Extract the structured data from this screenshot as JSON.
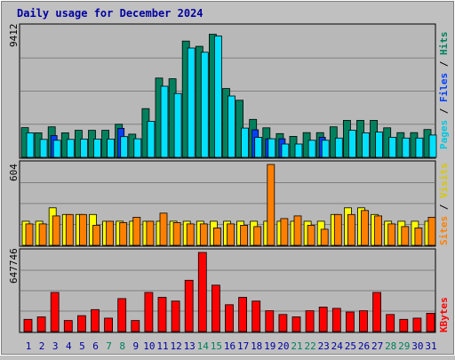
{
  "title": "Daily usage for December 2024",
  "colors": {
    "background": "#c0c0c0",
    "plot_bg": "#b8b8b8",
    "gridline": "#808080",
    "hits": "#00805c",
    "files": "#0040ff",
    "pages": "#00e0ff",
    "visits": "#ffff00",
    "sites": "#ff8000",
    "kbytes": "#ff0000",
    "title": "#0000a0",
    "weekend_label": "#00805c",
    "weekday_label": "#0000a0"
  },
  "chart_data": [
    {
      "type": "bar",
      "name": "hits-files-pages",
      "axis_label": "9412",
      "ymax": 9412,
      "categories": [
        "1",
        "2",
        "3",
        "4",
        "5",
        "6",
        "7",
        "8",
        "9",
        "10",
        "11",
        "12",
        "13",
        "14",
        "15",
        "16",
        "17",
        "18",
        "19",
        "20",
        "21",
        "22",
        "23",
        "24",
        "25",
        "26",
        "27",
        "28",
        "29",
        "30",
        "31"
      ],
      "side_label": {
        "pages": "Pages",
        "files": "Files",
        "hits": "Hits",
        "sep": " / "
      },
      "series": [
        {
          "name": "Hits",
          "values": [
            2150,
            1780,
            2210,
            1780,
            1960,
            1960,
            1960,
            2400,
            1680,
            3530,
            5750,
            5700,
            8430,
            8050,
            8930,
            4990,
            4140,
            2750,
            2140,
            1720,
            1520,
            1790,
            1790,
            2210,
            2680,
            2680,
            2680,
            2140,
            1790,
            1790,
            2020
          ]
        },
        {
          "name": "Files",
          "values": [
            0,
            0,
            1580,
            0,
            0,
            0,
            0,
            2100,
            0,
            0,
            0,
            0,
            0,
            0,
            0,
            0,
            0,
            2000,
            1350,
            1350,
            0,
            0,
            1460,
            0,
            0,
            0,
            0,
            0,
            0,
            0,
            0
          ]
        },
        {
          "name": "Pages",
          "values": [
            1780,
            1300,
            1240,
            1300,
            1330,
            1330,
            1330,
            1500,
            1350,
            2620,
            5160,
            4630,
            7930,
            7620,
            8800,
            4450,
            2120,
            1450,
            1350,
            970,
            970,
            1240,
            1240,
            1400,
            1960,
            1780,
            1830,
            1460,
            1400,
            1400,
            1620
          ]
        }
      ]
    },
    {
      "type": "bar",
      "name": "visits-sites",
      "axis_label": "604",
      "ymax": 604,
      "side_label": {
        "sites": "Sites",
        "visits": "Visits",
        "sep": " / "
      },
      "series": [
        {
          "name": "Visits",
          "values": [
            180,
            180,
            280,
            230,
            230,
            230,
            180,
            180,
            180,
            180,
            180,
            180,
            180,
            180,
            180,
            180,
            180,
            180,
            180,
            180,
            180,
            180,
            180,
            230,
            280,
            280,
            230,
            180,
            180,
            180,
            180
          ]
        },
        {
          "name": "Sites",
          "values": [
            160,
            160,
            220,
            230,
            230,
            150,
            180,
            170,
            210,
            180,
            240,
            170,
            160,
            160,
            130,
            160,
            150,
            140,
            604,
            200,
            220,
            150,
            120,
            230,
            230,
            260,
            220,
            160,
            140,
            130,
            210
          ]
        }
      ]
    },
    {
      "type": "bar",
      "name": "kbytes",
      "axis_label": "647746",
      "ymax": 647746,
      "side_label": {
        "kbytes": "KBytes"
      },
      "series": [
        {
          "name": "KBytes",
          "values": [
            100000,
            120000,
            320000,
            90000,
            130000,
            180000,
            110000,
            270000,
            90000,
            320000,
            280000,
            250000,
            420000,
            647746,
            380000,
            220000,
            280000,
            250000,
            170000,
            140000,
            120000,
            170000,
            200000,
            190000,
            160000,
            170000,
            320000,
            140000,
            100000,
            110000,
            150000
          ]
        }
      ]
    }
  ],
  "x_axis": {
    "labels": [
      "1",
      "2",
      "3",
      "4",
      "5",
      "6",
      "7",
      "8",
      "9",
      "10",
      "11",
      "12",
      "13",
      "14",
      "15",
      "16",
      "17",
      "18",
      "19",
      "20",
      "21",
      "22",
      "23",
      "24",
      "25",
      "26",
      "27",
      "28",
      "29",
      "30",
      "31"
    ],
    "weekend": [
      false,
      false,
      false,
      false,
      false,
      false,
      true,
      true,
      false,
      false,
      false,
      false,
      false,
      true,
      true,
      false,
      false,
      false,
      false,
      false,
      true,
      true,
      false,
      false,
      false,
      false,
      false,
      true,
      true,
      false,
      false
    ]
  }
}
